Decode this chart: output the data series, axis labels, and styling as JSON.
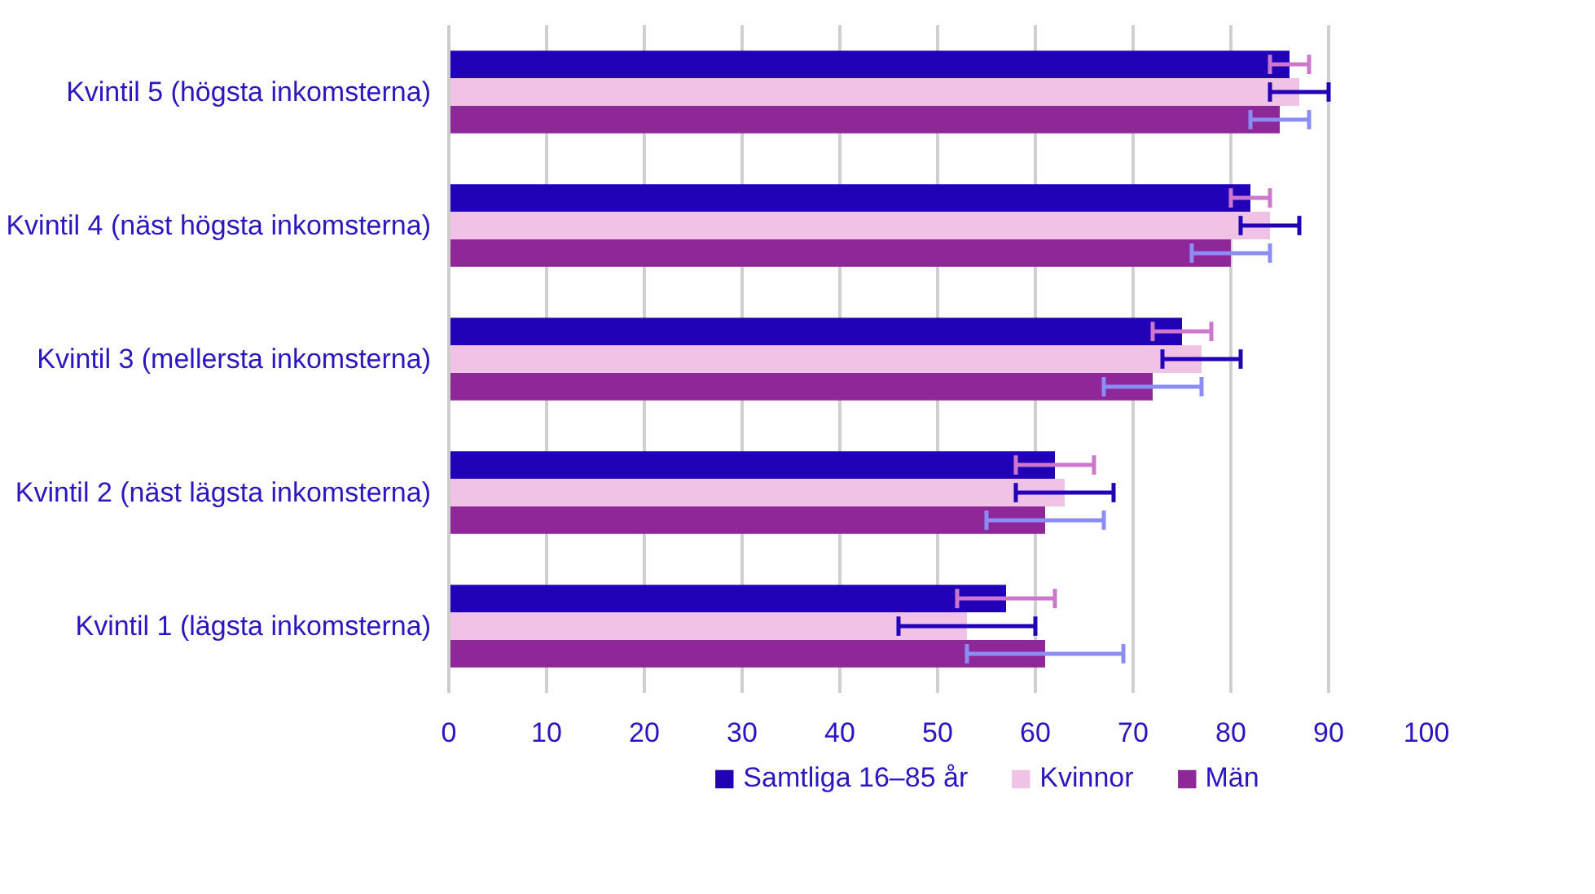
{
  "chart_data": {
    "type": "bar",
    "orientation": "horizontal",
    "categories": [
      "Kvintil 5 (högsta inkomsterna)",
      "Kvintil 4 (näst högsta inkomsterna)",
      "Kvintil 3 (mellersta inkomsterna)",
      "Kvintil 2 (näst lägsta inkomsterna)",
      "Kvintil 1 (lägsta inkomsterna)"
    ],
    "series": [
      {
        "name": "Samtliga 16–85 år",
        "color": "#2200b8",
        "values": [
          86,
          82,
          75,
          62,
          57
        ],
        "errors": [
          [
            84,
            88
          ],
          [
            80,
            84
          ],
          [
            72,
            78
          ],
          [
            58,
            66
          ],
          [
            52,
            62
          ]
        ]
      },
      {
        "name": "Kvinnor",
        "color": "#f0c3e6",
        "values": [
          87,
          84,
          77,
          63,
          53
        ],
        "errors": [
          [
            84,
            90
          ],
          [
            81,
            87
          ],
          [
            73,
            81
          ],
          [
            58,
            68
          ],
          [
            46,
            60
          ]
        ]
      },
      {
        "name": "Män",
        "color": "#8e2798",
        "values": [
          85,
          80,
          72,
          61,
          61
        ],
        "errors": [
          [
            82,
            88
          ],
          [
            76,
            84
          ],
          [
            67,
            77
          ],
          [
            55,
            67
          ],
          [
            53,
            69
          ]
        ]
      }
    ],
    "xlim": [
      0,
      100
    ],
    "xticks": [
      0,
      10,
      20,
      30,
      40,
      50,
      60,
      70,
      80,
      90,
      100
    ],
    "grid": "x",
    "legend": "bottom"
  }
}
